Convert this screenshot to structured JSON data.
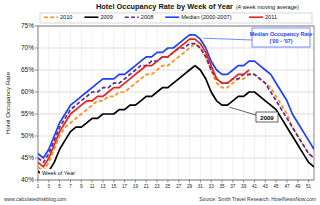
{
  "chart_data": {
    "type": "line",
    "title": "Hotel Occupancy Rate by Week of Year",
    "subtitle": "(4 week moving average)",
    "x_label": "Week of Year",
    "y_label": "Hotel Occupancy Rate",
    "annotations": [
      "Median Occupancy Rate ('00 - '07)",
      "2009"
    ],
    "footer_left": "www.calculatedriskblog.com",
    "footer_right": "Source: Smith Travel Research, HotelNewsNow.com",
    "x": [
      1,
      2,
      3,
      4,
      5,
      6,
      7,
      8,
      9,
      10,
      11,
      12,
      13,
      14,
      15,
      16,
      17,
      18,
      19,
      20,
      21,
      22,
      23,
      24,
      25,
      26,
      27,
      28,
      29,
      30,
      31,
      32,
      33,
      34,
      35,
      36,
      37,
      38,
      39,
      40,
      41,
      42,
      43,
      44,
      45,
      46,
      47,
      48,
      49,
      50,
      51,
      52
    ],
    "xlim": [
      1,
      52
    ],
    "xticks": [
      1,
      3,
      5,
      7,
      9,
      11,
      13,
      15,
      17,
      19,
      21,
      23,
      25,
      27,
      29,
      31,
      33,
      35,
      37,
      39,
      41,
      43,
      45,
      47,
      49,
      51
    ],
    "ylim": [
      40,
      75
    ],
    "yticks": [
      {
        "value": 40,
        "label": "40%"
      },
      {
        "value": 45,
        "label": "45%"
      },
      {
        "value": 50,
        "label": "50%"
      },
      {
        "value": 55,
        "label": "55%"
      },
      {
        "value": 60,
        "label": "60%"
      },
      {
        "value": 65,
        "label": "65%"
      },
      {
        "value": 70,
        "label": "70%"
      },
      {
        "value": 75,
        "label": "75%"
      }
    ],
    "grid": true,
    "legend": "top",
    "series": [
      {
        "name": "2010",
        "color": "#ff8c1a",
        "line_style": "dashed",
        "values": [
          43,
          42,
          44,
          47,
          50,
          52,
          53,
          54,
          55,
          56,
          57,
          58,
          58,
          59,
          59,
          60,
          60,
          61,
          62,
          63,
          64,
          64,
          65,
          66,
          66,
          67,
          68,
          69,
          70,
          71,
          70,
          68,
          65,
          62,
          61,
          61,
          62,
          63,
          63,
          64,
          64,
          63,
          62,
          61,
          59,
          57,
          55,
          52,
          50,
          48,
          46,
          45
        ]
      },
      {
        "name": "2009",
        "color": "#000000",
        "line_style": "solid",
        "values": [
          42,
          41,
          42,
          44,
          47,
          49,
          51,
          52,
          52,
          53,
          54,
          54,
          55,
          55,
          55,
          56,
          56,
          57,
          57,
          58,
          59,
          59,
          60,
          61,
          61,
          62,
          63,
          64,
          65,
          66,
          65,
          63,
          60,
          58,
          57,
          57,
          58,
          59,
          59,
          60,
          60,
          59,
          58,
          57,
          56,
          54,
          52,
          50,
          48,
          46,
          44,
          43
        ]
      },
      {
        "name": "2008",
        "color": "#5b2c8f",
        "line_style": "dashed",
        "values": [
          45,
          44,
          46,
          49,
          52,
          54,
          56,
          57,
          58,
          59,
          60,
          60,
          61,
          61,
          62,
          62,
          63,
          64,
          65,
          66,
          66,
          67,
          67,
          68,
          68,
          69,
          70,
          70,
          71,
          71,
          70,
          68,
          65,
          63,
          62,
          62,
          63,
          63,
          64,
          64,
          64,
          63,
          62,
          60,
          58,
          56,
          54,
          52,
          50,
          48,
          46,
          45
        ]
      },
      {
        "name": "Median (2000-2007)",
        "color": "#1f3fff",
        "line_style": "solid",
        "values": [
          46,
          45,
          47,
          50,
          53,
          55,
          57,
          58,
          59,
          60,
          61,
          62,
          63,
          63,
          63,
          64,
          64,
          65,
          66,
          67,
          68,
          68,
          69,
          69,
          70,
          70,
          71,
          72,
          73,
          73,
          72,
          70,
          67,
          65,
          64,
          64,
          65,
          66,
          66,
          67,
          67,
          66,
          65,
          64,
          62,
          60,
          58,
          55,
          53,
          51,
          49,
          47
        ]
      },
      {
        "name": "2011",
        "color": "#e8231a",
        "line_style": "solid",
        "values": [
          44,
          43,
          45,
          48,
          51,
          53,
          55,
          56,
          57,
          58,
          58,
          59,
          59,
          60,
          61,
          61,
          62,
          63,
          64,
          65,
          66,
          66,
          67,
          68,
          68,
          69,
          70,
          71,
          72,
          72,
          71,
          69,
          66,
          63,
          62,
          62,
          63,
          64,
          64,
          65,
          null,
          null,
          null,
          null,
          null,
          null,
          null,
          null,
          null,
          null,
          null,
          null
        ]
      }
    ]
  }
}
